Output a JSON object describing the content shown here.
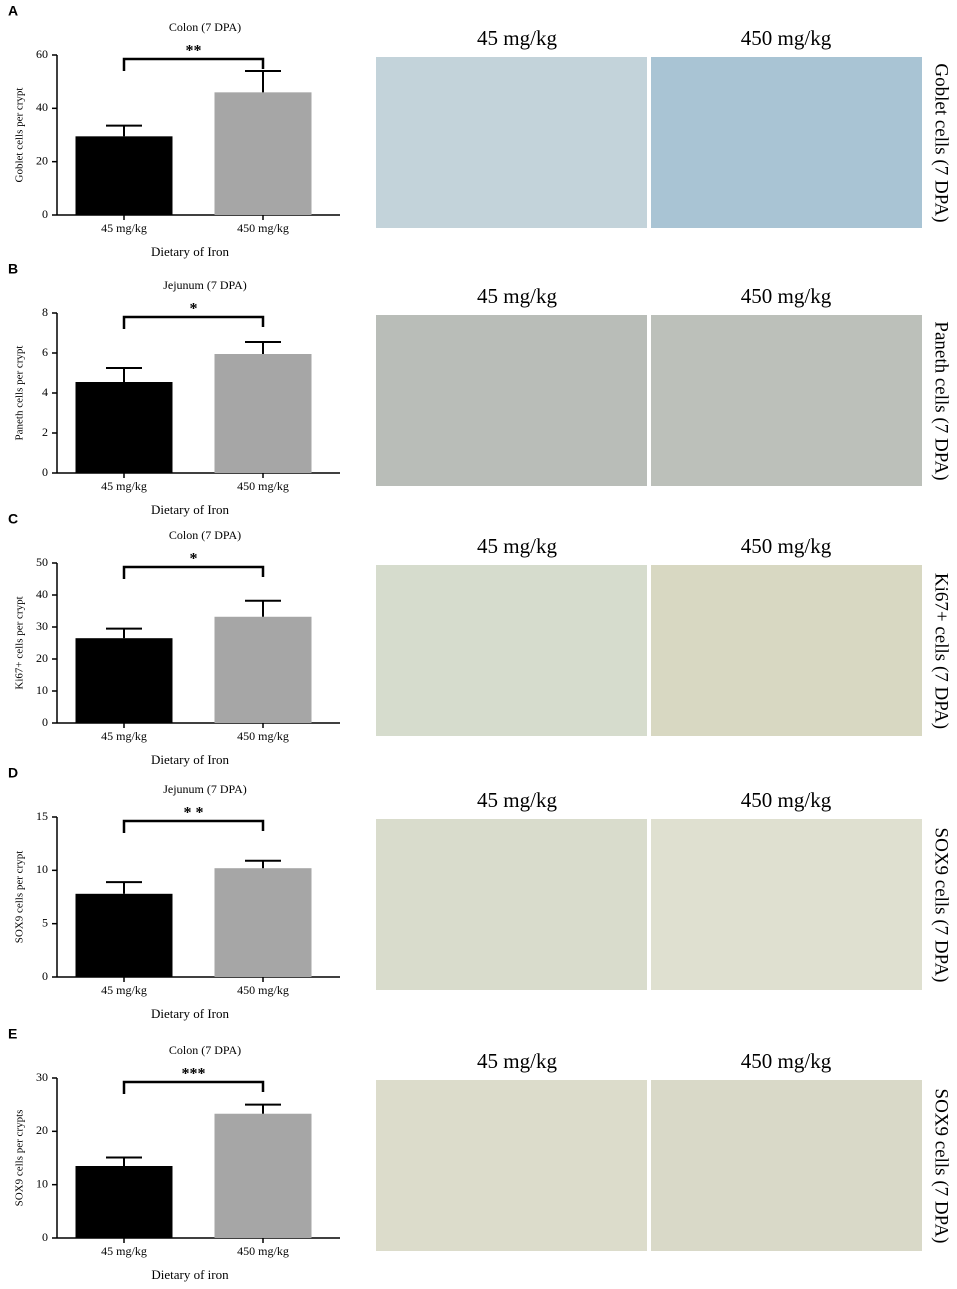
{
  "chart_data": [
    {
      "type": "bar",
      "title": "Colon (7 DPA)",
      "ylabel": "Goblet cells per crypt",
      "xlabel": "Dietary of Iron",
      "categories": [
        "45 mg/kg",
        "450 mg/kg"
      ],
      "values": [
        29.5,
        46
      ],
      "errors": [
        4,
        8
      ],
      "colors": [
        "#000000",
        "#a6a6a6"
      ],
      "significance": "**",
      "ylim": [
        0,
        60
      ],
      "yticks": [
        0,
        20,
        40,
        60
      ]
    },
    {
      "type": "bar",
      "title": "Jejunum (7 DPA)",
      "ylabel": "Paneth cells per crypt",
      "xlabel": "Dietary of Iron",
      "categories": [
        "45 mg/kg",
        "450 mg/kg"
      ],
      "values": [
        4.55,
        5.95
      ],
      "errors": [
        0.7,
        0.6
      ],
      "colors": [
        "#000000",
        "#a6a6a6"
      ],
      "significance": "*",
      "ylim": [
        0,
        8
      ],
      "yticks": [
        0,
        2,
        4,
        6,
        8
      ]
    },
    {
      "type": "bar",
      "title": "Colon (7 DPA)",
      "ylabel": "Ki67+ cells per crypt",
      "xlabel": "Dietary of Iron",
      "categories": [
        "45 mg/kg",
        "450 mg/kg"
      ],
      "values": [
        26.5,
        33.2
      ],
      "errors": [
        3,
        5
      ],
      "colors": [
        "#000000",
        "#a6a6a6"
      ],
      "significance": "*",
      "ylim": [
        0,
        50
      ],
      "yticks": [
        0,
        10,
        20,
        30,
        40,
        50
      ]
    },
    {
      "type": "bar",
      "title": "Jejunum (7 DPA)",
      "ylabel": "SOX9 cells per crypt",
      "xlabel": "Dietary of Iron",
      "categories": [
        "45 mg/kg",
        "450 mg/kg"
      ],
      "values": [
        7.8,
        10.2
      ],
      "errors": [
        1.1,
        0.7
      ],
      "colors": [
        "#000000",
        "#a6a6a6"
      ],
      "significance": "* *",
      "ylim": [
        0,
        15
      ],
      "yticks": [
        0,
        5,
        10,
        15
      ]
    },
    {
      "type": "bar",
      "title": "Colon (7 DPA)",
      "ylabel": "SOX9 cells per crypts",
      "xlabel": "Dietary of iron",
      "categories": [
        "45 mg/kg",
        "450 mg/kg"
      ],
      "values": [
        13.5,
        23.3
      ],
      "errors": [
        1.6,
        1.7
      ],
      "colors": [
        "#000000",
        "#a6a6a6"
      ],
      "significance": "***",
      "ylim": [
        0,
        30
      ],
      "yticks": [
        0,
        10,
        20,
        30
      ]
    }
  ],
  "panels": [
    {
      "letter": "A",
      "image_labels": [
        "45 mg/kg",
        "450 mg/kg"
      ],
      "side_label": "Goblet cells (7 DPA)"
    },
    {
      "letter": "B",
      "image_labels": [
        "45 mg/kg",
        "450 mg/kg"
      ],
      "side_label": "Paneth cells (7 DPA)"
    },
    {
      "letter": "C",
      "image_labels": [
        "45 mg/kg",
        "450 mg/kg"
      ],
      "side_label": "Ki67+ cells (7 DPA)"
    },
    {
      "letter": "D",
      "image_labels": [
        "45 mg/kg",
        "450 mg/kg"
      ],
      "side_label": "SOX9 cells (7 DPA)"
    },
    {
      "letter": "E",
      "image_labels": [
        "45 mg/kg",
        "450 mg/kg"
      ],
      "side_label": "SOX9 cells (7 DPA)"
    }
  ]
}
